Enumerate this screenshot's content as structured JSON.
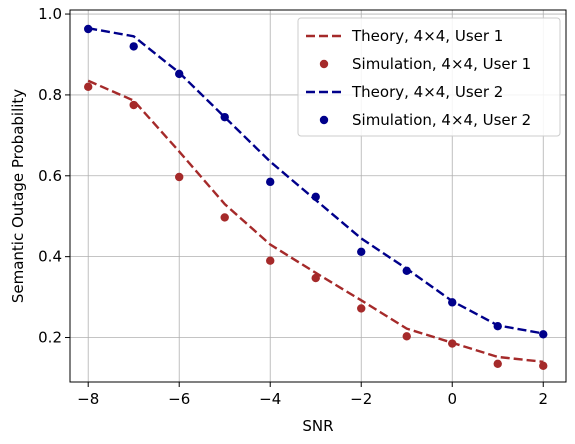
{
  "chart_data": {
    "type": "line",
    "title": "",
    "xlabel": "SNR",
    "ylabel": "Semantic Outage Probability",
    "xlim": [
      -8.4,
      2.5
    ],
    "ylim": [
      0.09,
      1.01
    ],
    "xticks": [
      -8,
      -6,
      -4,
      -2,
      0,
      2
    ],
    "xtick_labels": [
      "−8",
      "−6",
      "−4",
      "−2",
      "0",
      "2"
    ],
    "yticks": [
      0.2,
      0.4,
      0.6,
      0.8,
      1.0
    ],
    "ytick_labels": [
      "0.2",
      "0.4",
      "0.6",
      "0.8",
      "1.0"
    ],
    "grid": true,
    "legend_position": "top-right",
    "series": [
      {
        "name": "Theory, 4×4, User 1",
        "kind": "dashed-line",
        "color": "#a52a2a",
        "x": [
          -8,
          -7,
          -6,
          -5,
          -4,
          -3,
          -2,
          -1,
          0,
          1,
          2
        ],
        "y": [
          0.835,
          0.786,
          0.66,
          0.53,
          0.43,
          0.36,
          0.292,
          0.222,
          0.187,
          0.152,
          0.14
        ]
      },
      {
        "name": "Simulation, 4×4, User 1",
        "kind": "markers",
        "color": "#a52a2a",
        "x": [
          -8,
          -7,
          -6,
          -5,
          -4,
          -3,
          -2,
          -1,
          0,
          1,
          2
        ],
        "y": [
          0.82,
          0.775,
          0.597,
          0.497,
          0.39,
          0.347,
          0.272,
          0.203,
          0.185,
          0.135,
          0.13
        ]
      },
      {
        "name": "Theory, 4×4, User 2",
        "kind": "dashed-line",
        "color": "#00008b",
        "x": [
          -8,
          -7,
          -6,
          -5,
          -4,
          -3,
          -2,
          -1,
          0,
          1,
          2
        ],
        "y": [
          0.965,
          0.945,
          0.855,
          0.745,
          0.635,
          0.54,
          0.445,
          0.37,
          0.29,
          0.23,
          0.21
        ]
      },
      {
        "name": "Simulation, 4×4, User 2",
        "kind": "markers",
        "color": "#00008b",
        "x": [
          -8,
          -7,
          -6,
          -5,
          -4,
          -3,
          -2,
          -1,
          0,
          1,
          2
        ],
        "y": [
          0.963,
          0.92,
          0.852,
          0.745,
          0.585,
          0.548,
          0.412,
          0.365,
          0.287,
          0.228,
          0.208
        ]
      }
    ]
  }
}
